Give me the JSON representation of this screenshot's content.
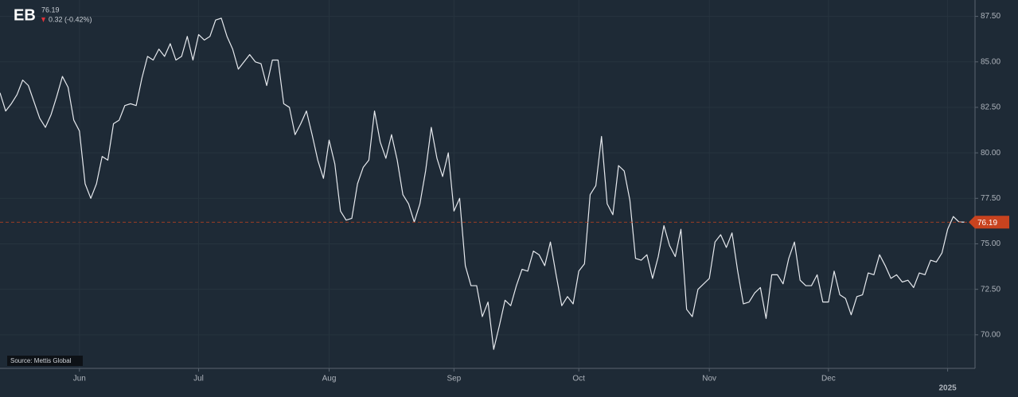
{
  "header": {
    "symbol": "EB",
    "price": 76.19,
    "change": "0.32 (-0.42%)"
  },
  "source": "Source: Mettis Global",
  "chart_data": {
    "type": "line",
    "color": "#e6e9ee",
    "grid": true,
    "last_color": "#c8431f",
    "categories": [
      null,
      null,
      null,
      null,
      null,
      null,
      null,
      null,
      null,
      null,
      null,
      null,
      null,
      null,
      "Jun",
      null,
      null,
      null,
      null,
      null,
      null,
      null,
      null,
      null,
      null,
      null,
      null,
      null,
      null,
      null,
      null,
      null,
      null,
      null,
      null,
      "Jul",
      null,
      null,
      null,
      null,
      null,
      null,
      null,
      null,
      null,
      null,
      null,
      null,
      null,
      null,
      null,
      null,
      null,
      null,
      null,
      null,
      null,
      null,
      "Aug",
      null,
      null,
      null,
      null,
      null,
      null,
      null,
      null,
      null,
      null,
      null,
      null,
      null,
      null,
      null,
      null,
      null,
      null,
      null,
      null,
      null,
      "Sep",
      null,
      null,
      null,
      null,
      null,
      null,
      null,
      null,
      null,
      null,
      null,
      null,
      null,
      null,
      null,
      null,
      null,
      null,
      null,
      null,
      null,
      "Oct",
      null,
      null,
      null,
      null,
      null,
      null,
      null,
      null,
      null,
      null,
      null,
      null,
      null,
      null,
      null,
      null,
      null,
      null,
      null,
      null,
      null,
      null,
      "Nov",
      null,
      null,
      null,
      null,
      null,
      null,
      null,
      null,
      null,
      null,
      null,
      null,
      null,
      null,
      null,
      null,
      null,
      null,
      null,
      null,
      "Dec",
      null,
      null,
      null,
      null,
      null,
      null,
      null,
      null,
      null,
      null,
      null,
      null,
      null,
      null,
      null,
      null,
      null,
      null,
      null,
      null,
      "2025",
      null,
      null,
      null
    ],
    "values": [
      83.3,
      82.3,
      82.7,
      83.2,
      84.0,
      83.7,
      82.8,
      81.9,
      81.4,
      82.1,
      83.1,
      84.2,
      83.6,
      81.8,
      81.2,
      78.3,
      77.5,
      78.3,
      79.8,
      79.6,
      81.6,
      81.8,
      82.6,
      82.7,
      82.6,
      84.1,
      85.3,
      85.1,
      85.7,
      85.3,
      86.0,
      85.1,
      85.3,
      86.4,
      85.1,
      86.5,
      86.2,
      86.4,
      87.3,
      87.4,
      86.4,
      85.7,
      84.6,
      85.0,
      85.4,
      85.0,
      84.9,
      83.7,
      85.1,
      85.1,
      82.7,
      82.5,
      81.0,
      81.6,
      82.3,
      81.0,
      79.6,
      78.6,
      80.7,
      79.4,
      76.8,
      76.3,
      76.4,
      78.3,
      79.2,
      79.6,
      82.3,
      80.6,
      79.7,
      81.0,
      79.6,
      77.7,
      77.2,
      76.2,
      77.2,
      79.0,
      81.4,
      79.7,
      78.7,
      80.0,
      76.8,
      77.5,
      73.8,
      72.7,
      72.7,
      71.0,
      71.8,
      69.2,
      70.5,
      71.9,
      71.6,
      72.7,
      73.6,
      73.5,
      74.6,
      74.4,
      73.8,
      75.1,
      73.3,
      71.6,
      72.1,
      71.7,
      73.5,
      73.9,
      77.7,
      78.2,
      80.9,
      77.2,
      76.6,
      79.3,
      79.0,
      77.4,
      74.2,
      74.1,
      74.4,
      73.1,
      74.3,
      76.0,
      74.9,
      74.3,
      75.8,
      71.4,
      71.0,
      72.5,
      72.8,
      73.1,
      75.1,
      75.5,
      74.8,
      75.6,
      73.5,
      71.7,
      71.8,
      72.3,
      72.6,
      70.9,
      73.3,
      73.3,
      72.8,
      74.2,
      75.1,
      73.0,
      72.7,
      72.7,
      73.3,
      71.8,
      71.8,
      73.5,
      72.2,
      72.0,
      71.1,
      72.1,
      72.2,
      73.4,
      73.3,
      74.4,
      73.8,
      73.1,
      73.3,
      72.9,
      73.0,
      72.6,
      73.4,
      73.3,
      74.1,
      74.0,
      74.5,
      75.8,
      76.5,
      76.2,
      76.19
    ],
    "ylim": [
      68.2,
      88.4
    ],
    "yticks": [
      {
        "value": 70,
        "label": "70.00"
      },
      {
        "value": 72.5,
        "label": "72.50"
      },
      {
        "value": 75,
        "label": "75.00"
      },
      {
        "value": 77.5,
        "label": "77.50"
      },
      {
        "value": 80,
        "label": "80.00"
      },
      {
        "value": 82.5,
        "label": "82.50"
      },
      {
        "value": 85,
        "label": "85.00"
      },
      {
        "value": 87.5,
        "label": "87.50"
      }
    ]
  }
}
